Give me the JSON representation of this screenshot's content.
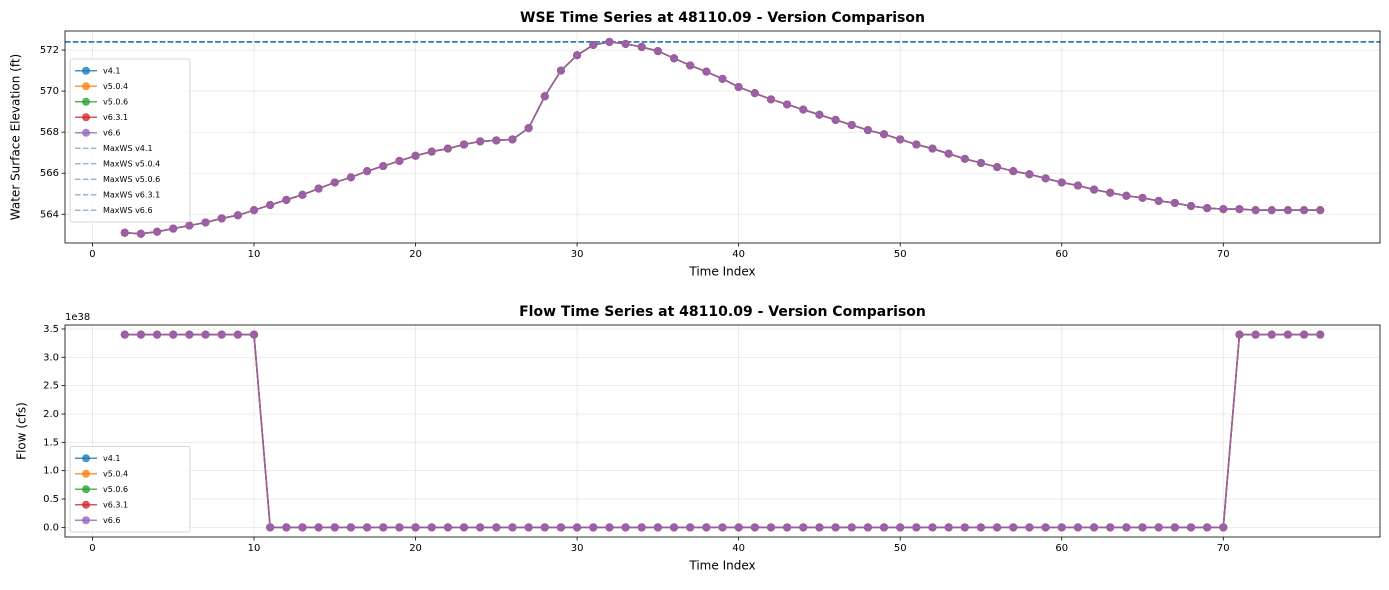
{
  "chart_data": [
    {
      "type": "line",
      "title": "WSE Time Series at 48110.09 - Version Comparison",
      "x_label": "Time Index",
      "y_label": "Water Surface Elevation (ft)",
      "x": [
        2,
        3,
        4,
        5,
        6,
        7,
        8,
        9,
        10,
        11,
        12,
        13,
        14,
        15,
        16,
        17,
        18,
        19,
        20,
        21,
        22,
        23,
        24,
        25,
        26,
        27,
        28,
        29,
        30,
        31,
        32,
        33,
        34,
        35,
        36,
        37,
        38,
        39,
        40,
        41,
        42,
        43,
        44,
        45,
        46,
        47,
        48,
        49,
        50,
        51,
        52,
        53,
        54,
        55,
        56,
        57,
        58,
        59,
        60,
        61,
        62,
        63,
        64,
        65,
        66,
        67,
        68,
        69,
        70,
        71,
        72,
        73,
        74,
        75,
        76
      ],
      "series": [
        {
          "name": "v4.1",
          "color": "#1f77b4",
          "values": [
            563.1,
            563.05,
            563.15,
            563.3,
            563.45,
            563.6,
            563.8,
            563.95,
            564.2,
            564.45,
            564.7,
            564.95,
            565.25,
            565.55,
            565.8,
            566.1,
            566.35,
            566.6,
            566.85,
            567.05,
            567.2,
            567.4,
            567.55,
            567.6,
            567.65,
            568.2,
            569.75,
            571.0,
            571.75,
            572.25,
            572.4,
            572.3,
            572.15,
            571.95,
            571.6,
            571.25,
            570.95,
            570.6,
            570.2,
            569.9,
            569.6,
            569.35,
            569.1,
            568.85,
            568.6,
            568.35,
            568.1,
            567.9,
            567.65,
            567.4,
            567.2,
            566.95,
            566.7,
            566.5,
            566.3,
            566.1,
            565.95,
            565.75,
            565.55,
            565.4,
            565.2,
            565.05,
            564.9,
            564.8,
            564.65,
            564.55,
            564.4,
            564.3,
            564.25,
            564.25,
            564.2,
            564.2,
            564.2,
            564.2,
            564.2
          ]
        },
        {
          "name": "v5.0.4",
          "color": "#ff7f0e",
          "values": [
            563.1,
            563.05,
            563.15,
            563.3,
            563.45,
            563.6,
            563.8,
            563.95,
            564.2,
            564.45,
            564.7,
            564.95,
            565.25,
            565.55,
            565.8,
            566.1,
            566.35,
            566.6,
            566.85,
            567.05,
            567.2,
            567.4,
            567.55,
            567.6,
            567.65,
            568.2,
            569.75,
            571.0,
            571.75,
            572.25,
            572.4,
            572.3,
            572.15,
            571.95,
            571.6,
            571.25,
            570.95,
            570.6,
            570.2,
            569.9,
            569.6,
            569.35,
            569.1,
            568.85,
            568.6,
            568.35,
            568.1,
            567.9,
            567.65,
            567.4,
            567.2,
            566.95,
            566.7,
            566.5,
            566.3,
            566.1,
            565.95,
            565.75,
            565.55,
            565.4,
            565.2,
            565.05,
            564.9,
            564.8,
            564.65,
            564.55,
            564.4,
            564.3,
            564.25,
            564.25,
            564.2,
            564.2,
            564.2,
            564.2,
            564.2
          ]
        },
        {
          "name": "v5.0.6",
          "color": "#2ca02c",
          "values": [
            563.1,
            563.05,
            563.15,
            563.3,
            563.45,
            563.6,
            563.8,
            563.95,
            564.2,
            564.45,
            564.7,
            564.95,
            565.25,
            565.55,
            565.8,
            566.1,
            566.35,
            566.6,
            566.85,
            567.05,
            567.2,
            567.4,
            567.55,
            567.6,
            567.65,
            568.2,
            569.75,
            571.0,
            571.75,
            572.25,
            572.4,
            572.3,
            572.15,
            571.95,
            571.6,
            571.25,
            570.95,
            570.6,
            570.2,
            569.9,
            569.6,
            569.35,
            569.1,
            568.85,
            568.6,
            568.35,
            568.1,
            567.9,
            567.65,
            567.4,
            567.2,
            566.95,
            566.7,
            566.5,
            566.3,
            566.1,
            565.95,
            565.75,
            565.55,
            565.4,
            565.2,
            565.05,
            564.9,
            564.8,
            564.65,
            564.55,
            564.4,
            564.3,
            564.25,
            564.25,
            564.2,
            564.2,
            564.2,
            564.2,
            564.2
          ]
        },
        {
          "name": "v6.3.1",
          "color": "#d62728",
          "values": [
            563.1,
            563.05,
            563.15,
            563.3,
            563.45,
            563.6,
            563.8,
            563.95,
            564.2,
            564.45,
            564.7,
            564.95,
            565.25,
            565.55,
            565.8,
            566.1,
            566.35,
            566.6,
            566.85,
            567.05,
            567.2,
            567.4,
            567.55,
            567.6,
            567.65,
            568.2,
            569.75,
            571.0,
            571.75,
            572.25,
            572.4,
            572.3,
            572.15,
            571.95,
            571.6,
            571.25,
            570.95,
            570.6,
            570.2,
            569.9,
            569.6,
            569.35,
            569.1,
            568.85,
            568.6,
            568.35,
            568.1,
            567.9,
            567.65,
            567.4,
            567.2,
            566.95,
            566.7,
            566.5,
            566.3,
            566.1,
            565.95,
            565.75,
            565.55,
            565.4,
            565.2,
            565.05,
            564.9,
            564.8,
            564.65,
            564.55,
            564.4,
            564.3,
            564.25,
            564.25,
            564.2,
            564.2,
            564.2,
            564.2,
            564.2
          ]
        },
        {
          "name": "v6.6",
          "color": "#9467bd",
          "values": [
            563.1,
            563.05,
            563.15,
            563.3,
            563.45,
            563.6,
            563.8,
            563.95,
            564.2,
            564.45,
            564.7,
            564.95,
            565.25,
            565.55,
            565.8,
            566.1,
            566.35,
            566.6,
            566.85,
            567.05,
            567.2,
            567.4,
            567.55,
            567.6,
            567.65,
            568.2,
            569.75,
            571.0,
            571.75,
            572.25,
            572.4,
            572.3,
            572.15,
            571.95,
            571.6,
            571.25,
            570.95,
            570.6,
            570.2,
            569.9,
            569.6,
            569.35,
            569.1,
            568.85,
            568.6,
            568.35,
            568.1,
            567.9,
            567.65,
            567.4,
            567.2,
            566.95,
            566.7,
            566.5,
            566.3,
            566.1,
            565.95,
            565.75,
            565.55,
            565.4,
            565.2,
            565.05,
            564.9,
            564.8,
            564.65,
            564.55,
            564.4,
            564.3,
            564.25,
            564.25,
            564.2,
            564.2,
            564.2,
            564.2,
            564.2
          ]
        }
      ],
      "hlines": [
        {
          "name": "MaxWS v4.1",
          "color": "#1f77b4",
          "value": 572.4
        },
        {
          "name": "MaxWS v5.0.4",
          "color": "#1f77b4",
          "value": 572.4
        },
        {
          "name": "MaxWS v5.0.6",
          "color": "#1f77b4",
          "value": 572.4
        },
        {
          "name": "MaxWS v6.3.1",
          "color": "#1f77b4",
          "value": 572.4
        },
        {
          "name": "MaxWS v6.6",
          "color": "#1f77b4",
          "value": 572.4
        }
      ],
      "xlim": [
        -1.7,
        79.7
      ],
      "xticks": [
        0,
        10,
        20,
        30,
        40,
        50,
        60,
        70
      ],
      "ylim": [
        562.6,
        572.93
      ],
      "yticks": [
        564,
        566,
        568,
        570,
        572
      ],
      "grid": true,
      "legend": "upper left"
    },
    {
      "type": "line",
      "title": "Flow Time Series at 48110.09 - Version Comparison",
      "x_label": "Time Index",
      "y_label": "Flow (cfs)",
      "offset_label": "1e38",
      "x": [
        2,
        3,
        4,
        5,
        6,
        7,
        8,
        9,
        10,
        11,
        12,
        13,
        14,
        15,
        16,
        17,
        18,
        19,
        20,
        21,
        22,
        23,
        24,
        25,
        26,
        27,
        28,
        29,
        30,
        31,
        32,
        33,
        34,
        35,
        36,
        37,
        38,
        39,
        40,
        41,
        42,
        43,
        44,
        45,
        46,
        47,
        48,
        49,
        50,
        51,
        52,
        53,
        54,
        55,
        56,
        57,
        58,
        59,
        60,
        61,
        62,
        63,
        64,
        65,
        66,
        67,
        68,
        69,
        70,
        71,
        72,
        73,
        74,
        75,
        76
      ],
      "series": [
        {
          "name": "v4.1",
          "color": "#1f77b4",
          "values": [
            3.4e+38,
            3.4e+38,
            3.4e+38,
            3.4e+38,
            3.4e+38,
            3.4e+38,
            3.4e+38,
            3.4e+38,
            3.4e+38,
            0,
            0,
            0,
            0,
            0,
            0,
            0,
            0,
            0,
            0,
            0,
            0,
            0,
            0,
            0,
            0,
            0,
            0,
            0,
            0,
            0,
            0,
            0,
            0,
            0,
            0,
            0,
            0,
            0,
            0,
            0,
            0,
            0,
            0,
            0,
            0,
            0,
            0,
            0,
            0,
            0,
            0,
            0,
            0,
            0,
            0,
            0,
            0,
            0,
            0,
            0,
            0,
            0,
            0,
            0,
            0,
            0,
            0,
            0,
            0,
            3.4e+38,
            3.4e+38,
            3.4e+38,
            3.4e+38,
            3.4e+38,
            3.4e+38
          ]
        },
        {
          "name": "v5.0.4",
          "color": "#ff7f0e",
          "values": [
            3.4e+38,
            3.4e+38,
            3.4e+38,
            3.4e+38,
            3.4e+38,
            3.4e+38,
            3.4e+38,
            3.4e+38,
            3.4e+38,
            0,
            0,
            0,
            0,
            0,
            0,
            0,
            0,
            0,
            0,
            0,
            0,
            0,
            0,
            0,
            0,
            0,
            0,
            0,
            0,
            0,
            0,
            0,
            0,
            0,
            0,
            0,
            0,
            0,
            0,
            0,
            0,
            0,
            0,
            0,
            0,
            0,
            0,
            0,
            0,
            0,
            0,
            0,
            0,
            0,
            0,
            0,
            0,
            0,
            0,
            0,
            0,
            0,
            0,
            0,
            0,
            0,
            0,
            0,
            0,
            3.4e+38,
            3.4e+38,
            3.4e+38,
            3.4e+38,
            3.4e+38,
            3.4e+38
          ]
        },
        {
          "name": "v5.0.6",
          "color": "#2ca02c",
          "values": [
            3.4e+38,
            3.4e+38,
            3.4e+38,
            3.4e+38,
            3.4e+38,
            3.4e+38,
            3.4e+38,
            3.4e+38,
            3.4e+38,
            0,
            0,
            0,
            0,
            0,
            0,
            0,
            0,
            0,
            0,
            0,
            0,
            0,
            0,
            0,
            0,
            0,
            0,
            0,
            0,
            0,
            0,
            0,
            0,
            0,
            0,
            0,
            0,
            0,
            0,
            0,
            0,
            0,
            0,
            0,
            0,
            0,
            0,
            0,
            0,
            0,
            0,
            0,
            0,
            0,
            0,
            0,
            0,
            0,
            0,
            0,
            0,
            0,
            0,
            0,
            0,
            0,
            0,
            0,
            0,
            3.4e+38,
            3.4e+38,
            3.4e+38,
            3.4e+38,
            3.4e+38,
            3.4e+38
          ]
        },
        {
          "name": "v6.3.1",
          "color": "#d62728",
          "values": [
            3.4e+38,
            3.4e+38,
            3.4e+38,
            3.4e+38,
            3.4e+38,
            3.4e+38,
            3.4e+38,
            3.4e+38,
            3.4e+38,
            0,
            0,
            0,
            0,
            0,
            0,
            0,
            0,
            0,
            0,
            0,
            0,
            0,
            0,
            0,
            0,
            0,
            0,
            0,
            0,
            0,
            0,
            0,
            0,
            0,
            0,
            0,
            0,
            0,
            0,
            0,
            0,
            0,
            0,
            0,
            0,
            0,
            0,
            0,
            0,
            0,
            0,
            0,
            0,
            0,
            0,
            0,
            0,
            0,
            0,
            0,
            0,
            0,
            0,
            0,
            0,
            0,
            0,
            0,
            0,
            3.4e+38,
            3.4e+38,
            3.4e+38,
            3.4e+38,
            3.4e+38,
            3.4e+38
          ]
        },
        {
          "name": "v6.6",
          "color": "#9467bd",
          "values": [
            3.4e+38,
            3.4e+38,
            3.4e+38,
            3.4e+38,
            3.4e+38,
            3.4e+38,
            3.4e+38,
            3.4e+38,
            3.4e+38,
            0,
            0,
            0,
            0,
            0,
            0,
            0,
            0,
            0,
            0,
            0,
            0,
            0,
            0,
            0,
            0,
            0,
            0,
            0,
            0,
            0,
            0,
            0,
            0,
            0,
            0,
            0,
            0,
            0,
            0,
            0,
            0,
            0,
            0,
            0,
            0,
            0,
            0,
            0,
            0,
            0,
            0,
            0,
            0,
            0,
            0,
            0,
            0,
            0,
            0,
            0,
            0,
            0,
            0,
            0,
            0,
            0,
            0,
            0,
            0,
            3.4e+38,
            3.4e+38,
            3.4e+38,
            3.4e+38,
            3.4e+38,
            3.4e+38
          ]
        }
      ],
      "xlim": [
        -1.7,
        79.7
      ],
      "xticks": [
        0,
        10,
        20,
        30,
        40,
        50,
        60,
        70
      ],
      "ylim": [
        -1.7e+37,
        3.57e+38
      ],
      "yticks": [
        {
          "value": 0,
          "label": "0.0"
        },
        {
          "value": 5e+37,
          "label": "0.5"
        },
        {
          "value": 1e+38,
          "label": "1.0"
        },
        {
          "value": 1.5e+38,
          "label": "1.5"
        },
        {
          "value": 2e+38,
          "label": "2.0"
        },
        {
          "value": 2.5e+38,
          "label": "2.5"
        },
        {
          "value": 3e+38,
          "label": "3.0"
        },
        {
          "value": 3.5e+38,
          "label": "3.5"
        }
      ],
      "grid": true,
      "legend": "lower left"
    }
  ]
}
